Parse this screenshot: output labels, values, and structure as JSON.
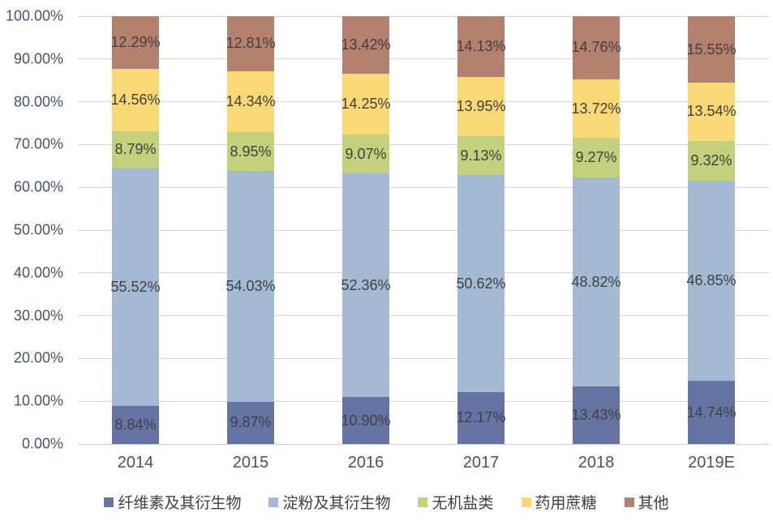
{
  "chart_data": {
    "type": "bar",
    "stacked": true,
    "percent_stacked": true,
    "grid": true,
    "legend_position": "bottom",
    "ylim": [
      0,
      100
    ],
    "y_ticks": [
      "100.00%",
      "90.00%",
      "80.00%",
      "70.00%",
      "60.00%",
      "50.00%",
      "40.00%",
      "30.00%",
      "20.00%",
      "10.00%",
      "0.00%"
    ],
    "categories": [
      "2014",
      "2015",
      "2016",
      "2017",
      "2018",
      "2019E"
    ],
    "series": [
      {
        "key": "cellulose-derivatives",
        "name": "纤维素及其衍生物",
        "color": "#6674A4",
        "values": [
          8.84,
          9.87,
          10.9,
          12.17,
          13.43,
          14.74
        ],
        "labels": [
          "8.84%",
          "9.87%",
          "10.90%",
          "12.17%",
          "13.43%",
          "14.74%"
        ]
      },
      {
        "key": "starch-derivatives",
        "name": "淀粉及其衍生物",
        "color": "#A4BAD2",
        "values": [
          55.52,
          54.03,
          52.36,
          50.62,
          48.82,
          46.85
        ],
        "labels": [
          "55.52%",
          "54.03%",
          "52.36%",
          "50.62%",
          "48.82%",
          "46.85%"
        ]
      },
      {
        "key": "inorganic-salts",
        "name": "无机盐类",
        "color": "#C5D07C",
        "values": [
          8.79,
          8.95,
          9.07,
          9.13,
          9.27,
          9.32
        ],
        "labels": [
          "8.79%",
          "8.95%",
          "9.07%",
          "9.13%",
          "9.27%",
          "9.32%"
        ]
      },
      {
        "key": "pharma-sucrose",
        "name": "药用蔗糖",
        "color": "#F9D876",
        "values": [
          14.56,
          14.34,
          14.25,
          13.95,
          13.72,
          13.54
        ],
        "labels": [
          "14.56%",
          "14.34%",
          "14.25%",
          "13.95%",
          "13.72%",
          "13.54%"
        ]
      },
      {
        "key": "others",
        "name": "其他",
        "color": "#B4816E",
        "values": [
          12.29,
          12.81,
          13.42,
          14.13,
          14.76,
          15.55
        ],
        "labels": [
          "12.29%",
          "12.81%",
          "13.42%",
          "14.13%",
          "14.76%",
          "15.55%"
        ]
      }
    ]
  },
  "colors": {
    "gridline": "#D9D9D9",
    "axis_text": "#44546A",
    "data_label_text": "#404040",
    "background": "#FFFFFF"
  }
}
